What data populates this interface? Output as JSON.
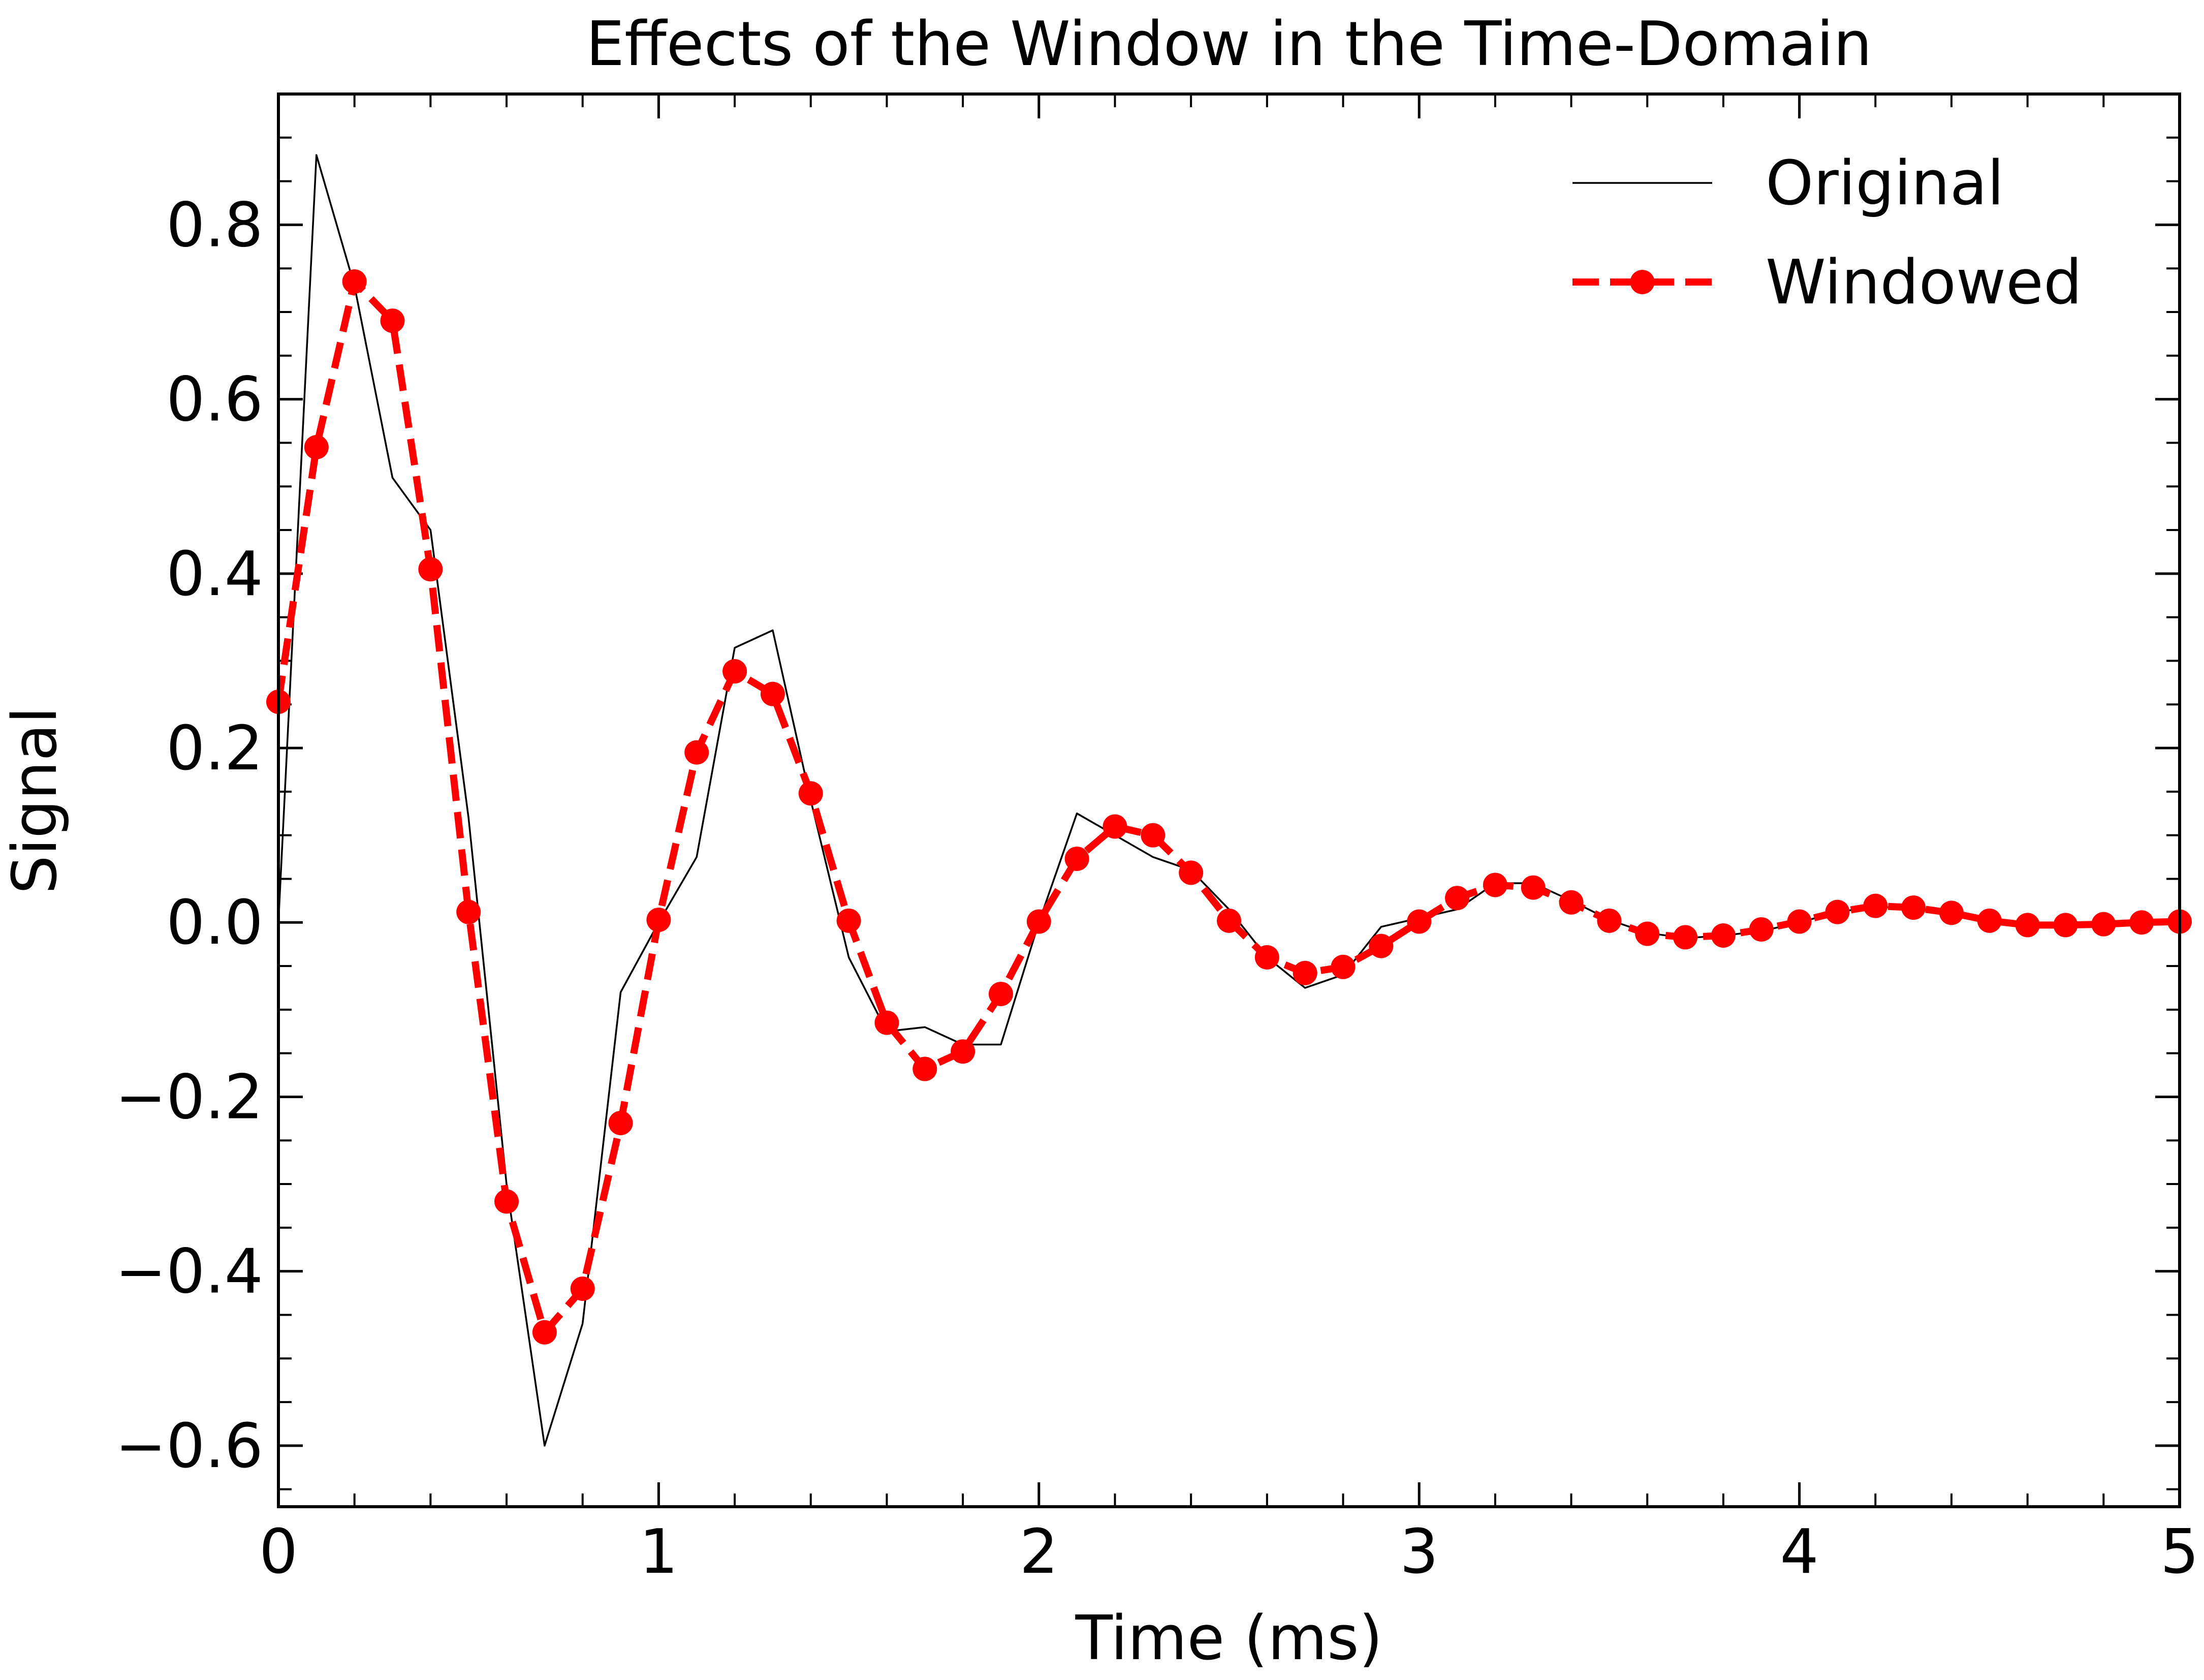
{
  "chart_data": {
    "type": "line",
    "title": "Effects of the Window in the Time-Domain",
    "xlabel": "Time (ms)",
    "ylabel": "Signal",
    "xlim": [
      0,
      5
    ],
    "ylim": [
      -0.67,
      0.95
    ],
    "xticks": [
      0,
      1,
      2,
      3,
      4,
      5
    ],
    "xtick_labels": [
      "0",
      "1",
      "2",
      "3",
      "4",
      "5"
    ],
    "yticks": [
      -0.6,
      -0.4,
      -0.2,
      0.0,
      0.2,
      0.4,
      0.6,
      0.8
    ],
    "ytick_labels": [
      "−0.6",
      "−0.4",
      "−0.2",
      "0.0",
      "0.2",
      "0.4",
      "0.6",
      "0.8"
    ],
    "grid": false,
    "legend_position": "top-right",
    "x": [
      0.0,
      0.1,
      0.2,
      0.3,
      0.4,
      0.5,
      0.6,
      0.7,
      0.8,
      0.9,
      1.0,
      1.1,
      1.2,
      1.3,
      1.4,
      1.5,
      1.6,
      1.7,
      1.8,
      1.9,
      2.0,
      2.1,
      2.2,
      2.3,
      2.4,
      2.5,
      2.6,
      2.7,
      2.8,
      2.9,
      3.0,
      3.1,
      3.2,
      3.3,
      3.4,
      3.5,
      3.6,
      3.7,
      3.8,
      3.9,
      4.0,
      4.1,
      4.2,
      4.3,
      4.4,
      4.5,
      4.6,
      4.7,
      4.8,
      4.9,
      5.0
    ],
    "series": [
      {
        "name": "Original",
        "color": "#000000",
        "style": "solid",
        "values": [
          0.0,
          0.88,
          0.73,
          0.51,
          0.45,
          0.12,
          -0.3,
          -0.6,
          -0.46,
          -0.08,
          0.0,
          0.075,
          0.315,
          0.335,
          0.14,
          -0.04,
          -0.125,
          -0.12,
          -0.14,
          -0.14,
          0.0,
          0.125,
          0.1,
          0.075,
          0.06,
          0.015,
          -0.04,
          -0.075,
          -0.06,
          -0.005,
          0.005,
          0.015,
          0.045,
          0.045,
          0.025,
          0.003,
          -0.012,
          -0.018,
          -0.015,
          -0.01,
          0.0,
          0.012,
          0.018,
          0.016,
          0.01,
          0.003,
          -0.002,
          -0.003,
          -0.002,
          0.0,
          0.0
        ]
      },
      {
        "name": "Windowed",
        "color": "#ff0000",
        "style": "dashed",
        "marker": "circle",
        "values": [
          0.253,
          0.545,
          0.735,
          0.69,
          0.405,
          0.012,
          -0.32,
          -0.47,
          -0.42,
          -0.23,
          0.003,
          0.195,
          0.288,
          0.262,
          0.148,
          0.002,
          -0.115,
          -0.168,
          -0.148,
          -0.082,
          0.001,
          0.073,
          0.11,
          0.1,
          0.057,
          0.002,
          -0.04,
          -0.058,
          -0.051,
          -0.027,
          0.001,
          0.028,
          0.043,
          0.04,
          0.023,
          0.002,
          -0.013,
          -0.017,
          -0.015,
          -0.008,
          0.001,
          0.012,
          0.019,
          0.017,
          0.011,
          0.002,
          -0.003,
          -0.003,
          -0.002,
          0.0,
          0.001
        ]
      }
    ]
  }
}
